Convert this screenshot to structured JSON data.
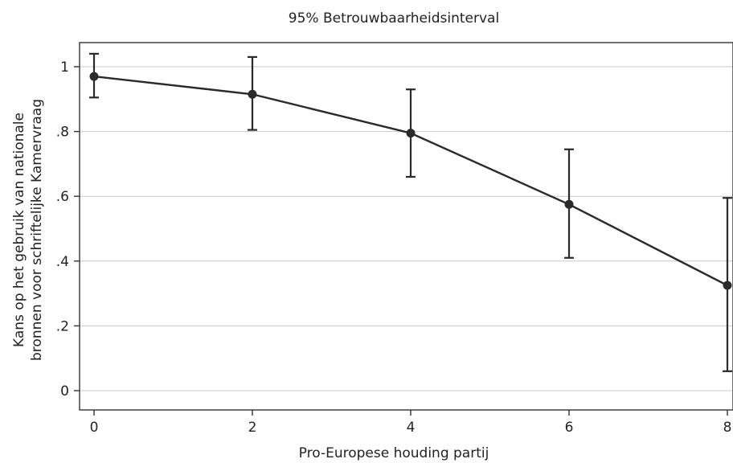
{
  "chart_data": {
    "type": "line",
    "title": "95% Betrouwbaarheidsinterval",
    "xlabel": "Pro-Europese houding partij",
    "ylabel_lines": [
      "Kans op het gebruik van nationale",
      "bronnen voor schriftelijke Kamervraag"
    ],
    "xlim": [
      0,
      8
    ],
    "ylim": [
      0,
      1
    ],
    "x_ticks": [
      0,
      2,
      4,
      6,
      8
    ],
    "x_tick_labels": [
      "0",
      "2",
      "4",
      "6",
      "8"
    ],
    "y_ticks": [
      0,
      0.2,
      0.4,
      0.6,
      0.8,
      1
    ],
    "y_tick_labels": [
      "0",
      ".2",
      ".4",
      ".6",
      ".8",
      "1"
    ],
    "grid": true,
    "series": [
      {
        "x": [
          0,
          2,
          4,
          6,
          8
        ],
        "y": [
          0.97,
          0.915,
          0.795,
          0.575,
          0.325
        ],
        "ci_lower": [
          0.905,
          0.805,
          0.66,
          0.41,
          0.06
        ],
        "ci_upper": [
          1.04,
          1.03,
          0.93,
          0.745,
          0.595
        ]
      }
    ]
  }
}
